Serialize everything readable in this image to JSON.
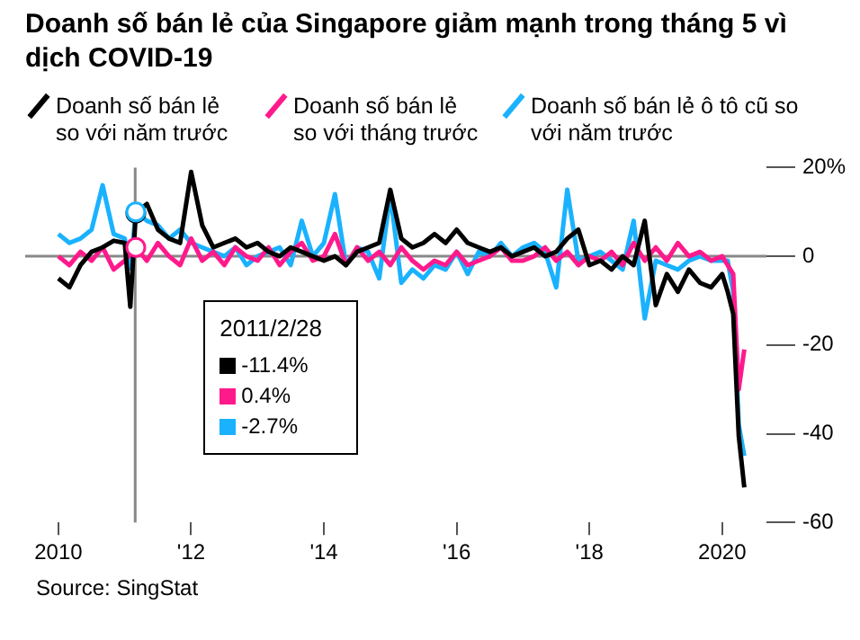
{
  "chart_data": {
    "type": "line",
    "title": "Doanh số bán lẻ của Singapore giảm mạnh trong tháng 5 vì dịch COVID-19",
    "x": [
      "2010-01",
      "2010-03",
      "2010-05",
      "2010-07",
      "2010-09",
      "2010-11",
      "2011-01",
      "2011-02",
      "2011-03",
      "2011-05",
      "2011-07",
      "2011-09",
      "2011-11",
      "2012-01",
      "2012-03",
      "2012-05",
      "2012-07",
      "2012-09",
      "2012-11",
      "2013-01",
      "2013-03",
      "2013-05",
      "2013-07",
      "2013-09",
      "2013-11",
      "2014-01",
      "2014-03",
      "2014-05",
      "2014-07",
      "2014-09",
      "2014-11",
      "2015-01",
      "2015-03",
      "2015-05",
      "2015-07",
      "2015-09",
      "2015-11",
      "2016-01",
      "2016-03",
      "2016-05",
      "2016-07",
      "2016-09",
      "2016-11",
      "2017-01",
      "2017-03",
      "2017-05",
      "2017-07",
      "2017-09",
      "2017-11",
      "2018-01",
      "2018-03",
      "2018-05",
      "2018-07",
      "2018-09",
      "2018-11",
      "2019-01",
      "2019-03",
      "2019-05",
      "2019-07",
      "2019-09",
      "2019-11",
      "2020-01",
      "2020-02",
      "2020-03",
      "2020-04",
      "2020-05"
    ],
    "series": [
      {
        "name": "Doanh số bán lẻ so với năm trước",
        "color": "#000000",
        "values": [
          -5,
          -7,
          -2,
          1,
          2,
          3.5,
          3,
          -11.4,
          9.7,
          11.8,
          6,
          4,
          3,
          19,
          7,
          2,
          3,
          4,
          2,
          3,
          1,
          0,
          2,
          1,
          0,
          -1,
          0,
          -2,
          1,
          2,
          3,
          15,
          4,
          2,
          3,
          5,
          3,
          6,
          3,
          2,
          1,
          2,
          0,
          1,
          2,
          0,
          1,
          4,
          6,
          -2,
          -1,
          -3,
          0,
          -2,
          8,
          -11,
          -4,
          -8,
          -3,
          -6,
          -7,
          -4,
          -8,
          -13,
          -40.5,
          -52.1
        ]
      },
      {
        "name": "Doanh số bán lẻ so với tháng trước",
        "color": "#ff1a8c",
        "values": [
          0,
          -2,
          1,
          -1,
          2,
          -3,
          -1,
          0.4,
          2,
          -1,
          3,
          0,
          -2,
          4,
          -1,
          1,
          -2,
          2,
          0,
          -1,
          2,
          -2,
          1,
          3,
          -1,
          0,
          5,
          -2,
          2,
          -1,
          1,
          -2,
          2,
          -1,
          -3,
          -1,
          -2,
          1,
          -2,
          -1,
          0,
          2,
          -1,
          -1,
          0,
          2,
          -1,
          1,
          -2,
          0,
          -1,
          1,
          -2,
          3,
          -1,
          2,
          -1,
          3,
          0,
          1,
          -1,
          0,
          -2,
          -4,
          -30,
          -21
        ]
      },
      {
        "name": "Doanh số bán lẻ ô tô cũ so với năm trước",
        "color": "#1ab2ff",
        "values": [
          5,
          3,
          4,
          6,
          16,
          5,
          4,
          -2.7,
          10,
          8,
          7,
          4,
          6,
          3,
          2,
          1,
          0,
          2,
          -2,
          0,
          1,
          2,
          -2,
          8,
          0,
          3,
          14,
          -2,
          2,
          1,
          -5,
          14,
          -6,
          -3,
          -5,
          -2,
          -3,
          1,
          -4,
          1,
          0,
          3,
          0,
          2,
          3,
          1,
          -7,
          15,
          -1,
          0,
          1,
          -1,
          -3,
          8,
          -14,
          -1,
          -2,
          -3,
          -1,
          0,
          -1,
          -1,
          -1,
          -8,
          -38,
          -45
        ]
      }
    ],
    "xlim": [
      "2009-07",
      "2020-09"
    ],
    "xticks": [
      {
        "value": "2010-01",
        "label": "2010"
      },
      {
        "value": "2012-01",
        "label": "'12"
      },
      {
        "value": "2014-01",
        "label": "'14"
      },
      {
        "value": "2016-01",
        "label": "'16"
      },
      {
        "value": "2018-01",
        "label": "'18"
      },
      {
        "value": "2020-01",
        "label": "2020"
      }
    ],
    "ylim": [
      -60,
      20
    ],
    "yticks": [
      -60,
      -40,
      -20,
      0,
      {
        "value": 20,
        "label": "20%"
      }
    ],
    "ref_lines": [
      {
        "axis": "y",
        "value": 0,
        "color": "#888888"
      },
      {
        "axis": "x",
        "value": "2011-02-28",
        "color": "#888888"
      }
    ],
    "annotations": [
      "2011/2/28",
      "-11.4%",
      "0.4%",
      "-2.7%",
      "Source: SingStat"
    ],
    "legend": "top",
    "marker": "none",
    "line_style": "solid",
    "grid": false
  }
}
